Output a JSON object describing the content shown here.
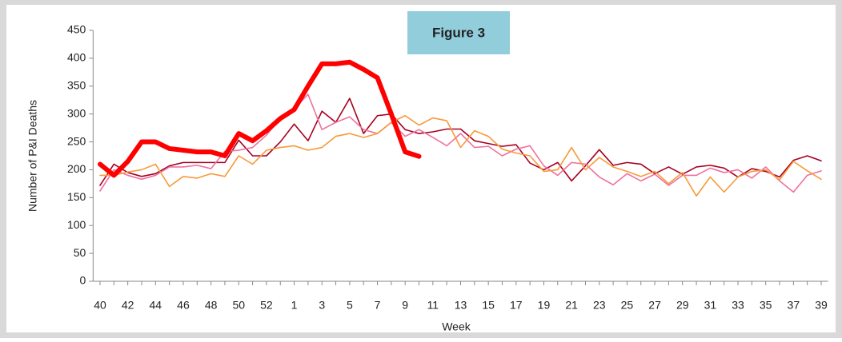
{
  "chart_data": {
    "type": "line",
    "title": "Figure 3",
    "x_label": "Week",
    "y_label": "Number of P&I Deaths",
    "categories": [
      40,
      null,
      42,
      null,
      44,
      null,
      46,
      null,
      48,
      null,
      50,
      null,
      52,
      null,
      1,
      null,
      3,
      null,
      5,
      null,
      7,
      null,
      9,
      null,
      11,
      null,
      13,
      null,
      15,
      null,
      17,
      null,
      19,
      null,
      21,
      null,
      23,
      null,
      25,
      null,
      27,
      null,
      29,
      null,
      31,
      null,
      33,
      null,
      35,
      null,
      37,
      null,
      39
    ],
    "series": [
      {
        "color": "#a50021",
        "values": [
          172,
          210,
          195,
          188,
          193,
          207,
          213,
          213,
          213,
          213,
          253,
          225,
          225,
          250,
          282,
          252,
          305,
          285,
          328,
          265,
          297,
          300,
          272,
          265,
          268,
          273,
          273,
          252,
          247,
          242,
          245,
          212,
          200,
          213,
          180,
          207,
          236,
          208,
          213,
          210,
          193,
          205,
          192,
          205,
          208,
          203,
          187,
          202,
          197,
          187,
          217,
          225,
          216
        ]
      },
      {
        "color": "#f0709f",
        "values": [
          162,
          200,
          190,
          183,
          190,
          205,
          205,
          208,
          202,
          233,
          235,
          240,
          262,
          292,
          310,
          335,
          272,
          285,
          295,
          272,
          265,
          285,
          260,
          272,
          258,
          243,
          265,
          240,
          242,
          225,
          237,
          243,
          207,
          190,
          213,
          210,
          187,
          173,
          193,
          180,
          192,
          172,
          190,
          190,
          203,
          195,
          200,
          185,
          205,
          180,
          160,
          190,
          198
        ]
      },
      {
        "color": "#f79a3a",
        "values": [
          190,
          190,
          196,
          200,
          210,
          170,
          188,
          185,
          193,
          188,
          225,
          210,
          235,
          240,
          243,
          235,
          240,
          260,
          265,
          258,
          265,
          285,
          297,
          280,
          293,
          288,
          240,
          270,
          260,
          237,
          230,
          225,
          197,
          200,
          240,
          200,
          222,
          205,
          197,
          188,
          197,
          175,
          195,
          153,
          187,
          160,
          187,
          197,
          200,
          182,
          215,
          198,
          183
        ]
      },
      {
        "color": "#ff0000",
        "values": [
          210,
          190,
          215,
          250,
          250,
          238,
          235,
          232,
          232,
          225,
          265,
          252,
          270,
          292,
          308,
          350,
          390,
          390,
          393,
          380,
          365,
          300,
          232,
          224,
          null,
          null,
          null,
          null,
          null,
          null,
          null,
          null,
          null,
          null,
          null,
          null,
          null,
          null,
          null,
          null,
          null,
          null,
          null,
          null,
          null,
          null,
          null,
          null,
          null,
          null,
          null,
          null,
          null
        ]
      }
    ],
    "ylim": [
      0,
      450
    ],
    "yticks": [
      0,
      50,
      100,
      150,
      200,
      250,
      300,
      350,
      400,
      450
    ]
  }
}
